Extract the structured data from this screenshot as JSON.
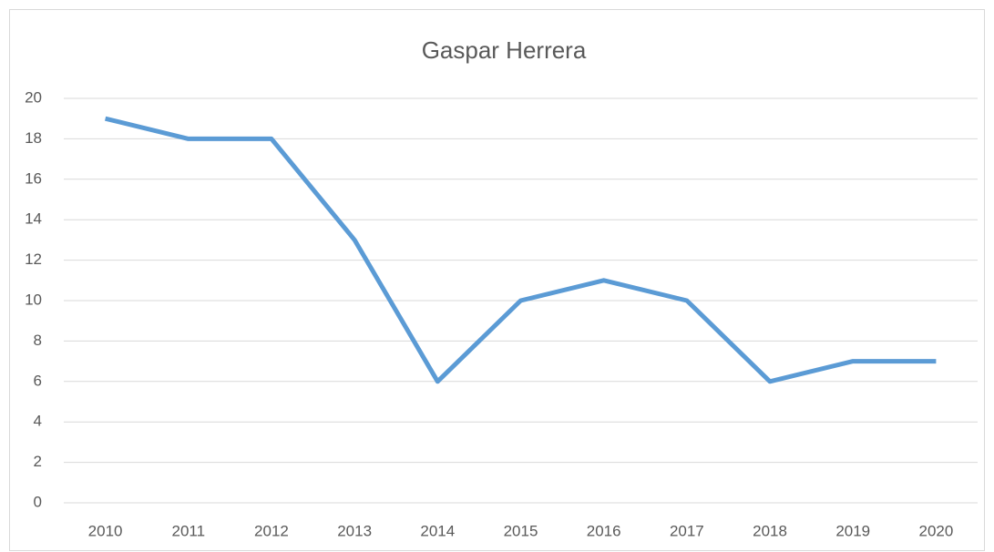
{
  "chart_data": {
    "type": "line",
    "title": "Gaspar Herrera",
    "categories": [
      "2010",
      "2011",
      "2012",
      "2013",
      "2014",
      "2015",
      "2016",
      "2017",
      "2018",
      "2019",
      "2020"
    ],
    "series": [
      {
        "color": "#5b9bd5",
        "values": [
          19,
          18,
          18,
          13,
          6,
          10,
          11,
          10,
          6,
          7,
          7
        ]
      }
    ],
    "ylim": [
      0,
      20
    ],
    "yticks": [
      0,
      2,
      4,
      6,
      8,
      10,
      12,
      14,
      16,
      18,
      20
    ],
    "grid": true
  }
}
